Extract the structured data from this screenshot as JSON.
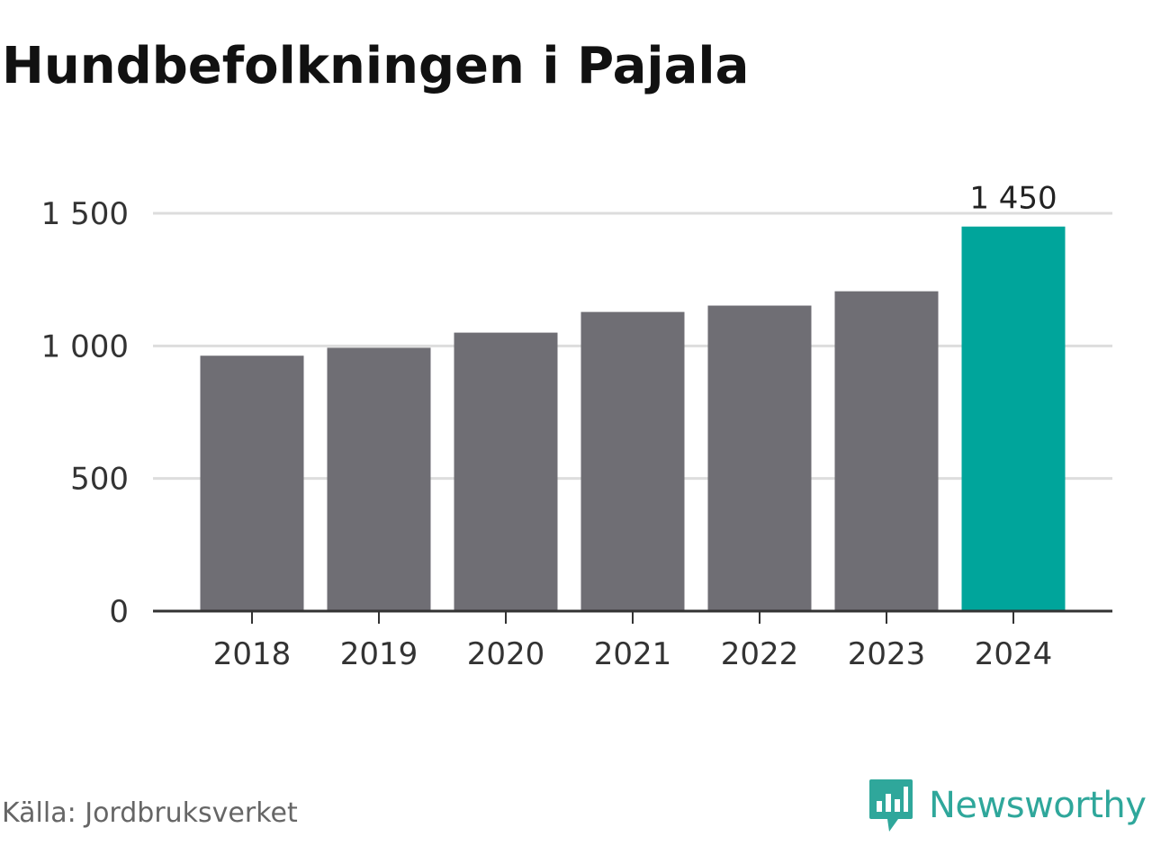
{
  "title": "Hundbefolkningen i Pajala",
  "source": "Källa: Jordbruksverket",
  "brand": {
    "name": "Newsworthy",
    "icon": "newsworthy-logo-icon",
    "color": "#2fa79b"
  },
  "colors": {
    "bar": "#6f6e74",
    "highlight": "#00a59b",
    "grid": "#dddddd",
    "axis": "#333333"
  },
  "chart_data": {
    "type": "bar",
    "title": "Hundbefolkningen i Pajala",
    "xlabel": "",
    "ylabel": "",
    "categories": [
      "2018",
      "2019",
      "2020",
      "2021",
      "2022",
      "2023",
      "2024"
    ],
    "values": [
      963,
      993,
      1050,
      1128,
      1152,
      1206,
      1450
    ],
    "highlight_index": 6,
    "ylim": [
      0,
      1500
    ],
    "yticks": [
      0,
      500,
      1000,
      1500
    ],
    "ytick_labels": [
      "0",
      "500",
      "1 000",
      "1 500"
    ],
    "data_labels": [
      {
        "index": 6,
        "text": "1 450"
      }
    ],
    "grid": true,
    "legend": "none"
  }
}
